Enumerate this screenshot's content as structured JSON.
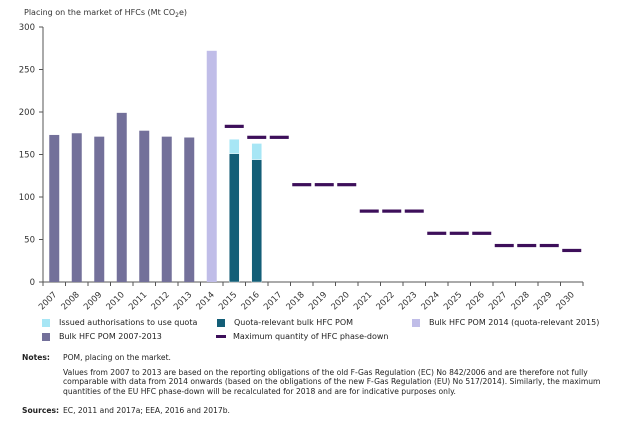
{
  "chart_data": {
    "type": "bar",
    "title": "",
    "ylabel": "Placing on the market of HFCs (Mt CO2e)",
    "ylabel_parts": {
      "main": "Placing on the market of HFCs (Mt CO",
      "sub": "2",
      "end": "e)"
    },
    "xlabel": "",
    "ylim": [
      0,
      300
    ],
    "yticks": [
      0,
      50,
      100,
      150,
      200,
      250,
      300
    ],
    "grid": false,
    "categories": [
      "2007",
      "2008",
      "2009",
      "2010",
      "2011",
      "2012",
      "2013",
      "2014",
      "2015",
      "2016",
      "2017",
      "2018",
      "2019",
      "2020",
      "2021",
      "2022",
      "2023",
      "2024",
      "2025",
      "2026",
      "2027",
      "2028",
      "2029",
      "2030"
    ],
    "series": [
      {
        "name": "Bulk HFC POM 2007-2013",
        "kind": "bar",
        "color": "#73709a",
        "values": [
          173,
          175,
          171,
          199,
          178,
          171,
          170,
          null,
          null,
          null,
          null,
          null,
          null,
          null,
          null,
          null,
          null,
          null,
          null,
          null,
          null,
          null,
          null,
          null
        ]
      },
      {
        "name": "Bulk HFC POM 2014 (quota-relevant 2015)",
        "kind": "bar",
        "color": "#c0bde8",
        "values": [
          null,
          null,
          null,
          null,
          null,
          null,
          null,
          272,
          null,
          null,
          null,
          null,
          null,
          null,
          null,
          null,
          null,
          null,
          null,
          null,
          null,
          null,
          null,
          null
        ]
      },
      {
        "name": "Quota-relevant bulk HFC POM",
        "kind": "stacked-bar",
        "color": "#135e77",
        "values": [
          null,
          null,
          null,
          null,
          null,
          null,
          null,
          null,
          151,
          144,
          null,
          null,
          null,
          null,
          null,
          null,
          null,
          null,
          null,
          null,
          null,
          null,
          null,
          null
        ]
      },
      {
        "name": "Issued authorisations to use quota",
        "kind": "stacked-bar",
        "color": "#a7e6f5",
        "values": [
          null,
          null,
          null,
          null,
          null,
          null,
          null,
          null,
          17,
          19,
          null,
          null,
          null,
          null,
          null,
          null,
          null,
          null,
          null,
          null,
          null,
          null,
          null,
          null
        ]
      },
      {
        "name": "Maximum quantity of HFC phase-down",
        "kind": "level",
        "color": "#3d0f5a",
        "values": [
          null,
          null,
          null,
          null,
          null,
          null,
          null,
          null,
          183.1,
          170.2,
          170.2,
          114.5,
          114.5,
          114.5,
          83.4,
          83.4,
          83.4,
          57.3,
          57.3,
          57.3,
          42.9,
          42.9,
          42.9,
          37.1
        ]
      }
    ],
    "legend_position": "bottom"
  },
  "legend": [
    {
      "label": "Issued authorisations to use quota",
      "color": "#a7e6f5",
      "kind": "box"
    },
    {
      "label": "Quota-relevant bulk HFC POM",
      "color": "#135e77",
      "kind": "box"
    },
    {
      "label": "Bulk HFC POM 2014 (quota-relevant 2015)",
      "color": "#c0bde8",
      "kind": "box"
    },
    {
      "label": "Bulk HFC POM 2007-2013",
      "color": "#73709a",
      "kind": "box"
    },
    {
      "label": "Maximum quantity of HFC phase-down",
      "color": "#3d0f5a",
      "kind": "line"
    }
  ],
  "notes": {
    "label": "Notes:",
    "lines": [
      "POM, placing on the market.",
      "Values from 2007 to 2013 are based on the reporting obligations of the old F-Gas Regulation (EC) No 842/2006 and are therefore not fully comparable with data from 2014 onwards (based on the obligations of the new F-Gas Regulation (EU) No 517/2014). Similarly, the maximum quantities of the EU HFC phase-down will be recalculated for 2018 and are for indicative purposes only."
    ]
  },
  "sources": {
    "label": "Sources:",
    "text": "EC, 2011 and 2017a; EEA, 2016 and 2017b."
  }
}
